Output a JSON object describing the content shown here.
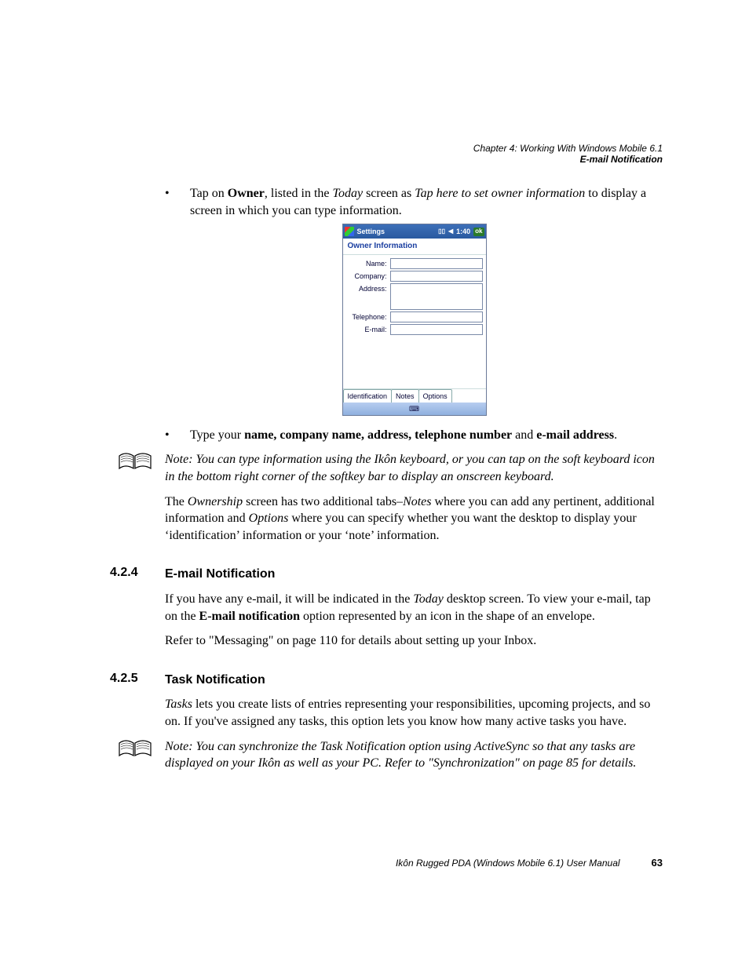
{
  "header": {
    "chapter": "Chapter 4:  Working With Windows Mobile 6.1",
    "section": "E-mail Notification"
  },
  "bullets": {
    "b1": {
      "pre": "Tap on ",
      "bold1": "Owner",
      "mid1": ", listed in the ",
      "it1": "Today",
      "mid2": " screen as ",
      "it2": "Tap here to set owner information",
      "post": " to display a screen in which you can type information."
    },
    "b2": {
      "pre": "Type your ",
      "bold1": "name, company name, address, telephone number",
      "mid": " and ",
      "bold2": "e-mail address",
      "post": "."
    }
  },
  "pda": {
    "topTitle": "Settings",
    "time": "1:40",
    "ok": "ok",
    "screenTitle": "Owner Information",
    "labels": {
      "name": "Name:",
      "company": "Company:",
      "address": "Address:",
      "telephone": "Telephone:",
      "email": "E-mail:"
    },
    "tabs": {
      "id": "Identification",
      "notes": "Notes",
      "options": "Options"
    }
  },
  "note1": {
    "text": "Note: You can type information using the Ikôn keyboard, or you can tap on the soft keyboard icon in the bottom right corner of the softkey bar to display an onscreen keyboard."
  },
  "ownershipPara": {
    "pre": "The ",
    "it1": "Ownership",
    "mid1": " screen has two additional tabs–",
    "it2": "Notes",
    "mid2": " where you can add any pertinent, additional information and ",
    "it3": "Options",
    "post": " where you can specify whether you want the desktop to display your ‘identification’ information or your ‘note’ information."
  },
  "sections": {
    "s424num": "4.2.4",
    "s424title": "E-mail Notification",
    "s425num": "4.2.5",
    "s425title": "Task Notification"
  },
  "s424": {
    "p1a": "If you have any e-mail, it will be indicated in the ",
    "p1it": "Today",
    "p1b": " desktop screen. To view your e-mail, tap on the ",
    "p1bold": "E-mail notification",
    "p1c": " option represented by an icon in the shape of an envelope.",
    "p2": "Refer to \"Messaging\" on page 110 for details about setting up your Inbox."
  },
  "s425": {
    "p1it": "Tasks",
    "p1": " lets you create lists of entries representing your responsibilities, upcoming projects, and so on. If you've assigned any tasks, this option lets you know how many active tasks you have."
  },
  "note2": {
    "text": "Note: You can synchronize the Task Notification option using ActiveSync so that any tasks are displayed on your Ikôn as well as your PC. Refer to \"Synchronization\" on page 85 for details."
  },
  "footer": {
    "title": "Ikôn Rugged PDA (Windows Mobile 6.1) User Manual",
    "page": "63"
  }
}
